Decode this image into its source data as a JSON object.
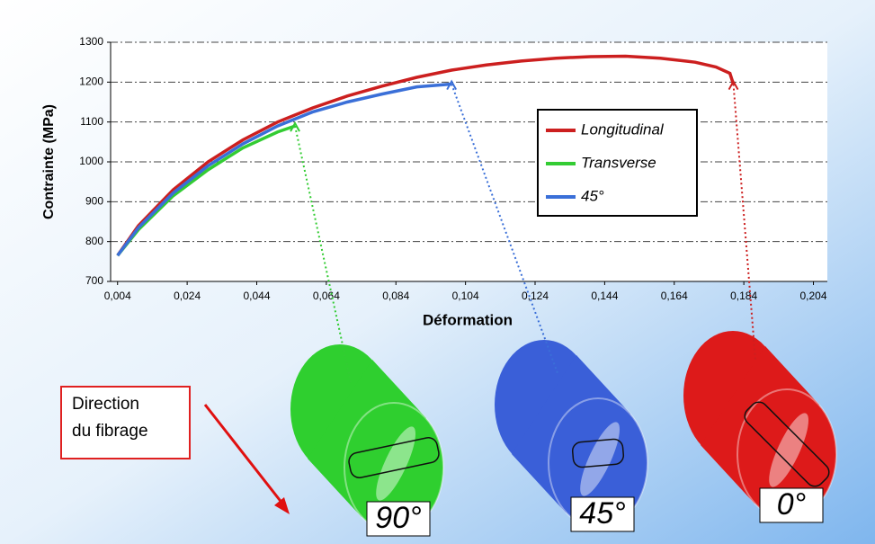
{
  "chart_data": {
    "type": "line",
    "y_label": "Contrainte (MPa)",
    "x_label": "Déformation",
    "xlim": [
      0.002,
      0.208
    ],
    "ylim": [
      700,
      1300
    ],
    "xticks": [
      {
        "value": 0.004,
        "label": "0,004"
      },
      {
        "value": 0.024,
        "label": "0,024"
      },
      {
        "value": 0.044,
        "label": "0,044"
      },
      {
        "value": 0.064,
        "label": "0,064"
      },
      {
        "value": 0.084,
        "label": "0,084"
      },
      {
        "value": 0.104,
        "label": "0,104"
      },
      {
        "value": 0.124,
        "label": "0,124"
      },
      {
        "value": 0.144,
        "label": "0,144"
      },
      {
        "value": 0.164,
        "label": "0,164"
      },
      {
        "value": 0.184,
        "label": "0,184"
      },
      {
        "value": 0.204,
        "label": "0,204"
      }
    ],
    "yticks": [
      700,
      800,
      900,
      1000,
      1100,
      1200,
      1300
    ],
    "grid": true,
    "series": [
      {
        "name": "Longitudinal",
        "color": "#cc1f1f",
        "x": [
          0.004,
          0.01,
          0.02,
          0.03,
          0.04,
          0.05,
          0.06,
          0.07,
          0.08,
          0.09,
          0.1,
          0.11,
          0.12,
          0.13,
          0.14,
          0.15,
          0.16,
          0.17,
          0.176,
          0.18,
          0.181
        ],
        "values": [
          765,
          840,
          930,
          1000,
          1055,
          1100,
          1135,
          1165,
          1190,
          1212,
          1230,
          1243,
          1253,
          1260,
          1264,
          1265,
          1260,
          1250,
          1238,
          1222,
          1195
        ]
      },
      {
        "name": "Transverse",
        "color": "#33cc33",
        "x": [
          0.004,
          0.01,
          0.02,
          0.03,
          0.04,
          0.05,
          0.055
        ],
        "values": [
          765,
          830,
          915,
          980,
          1035,
          1075,
          1090
        ]
      },
      {
        "name": "45°",
        "color": "#3a6fd8",
        "x": [
          0.004,
          0.01,
          0.02,
          0.03,
          0.04,
          0.05,
          0.06,
          0.07,
          0.08,
          0.09,
          0.1
        ],
        "values": [
          765,
          835,
          922,
          990,
          1045,
          1090,
          1125,
          1150,
          1170,
          1188,
          1195
        ]
      }
    ]
  },
  "illustration": {
    "direction_label": [
      "Direction",
      "du fibrage"
    ],
    "cylinders": [
      {
        "label": "90°",
        "color": "#2fcf2f"
      },
      {
        "label": "45°",
        "color": "#3a5fd8"
      },
      {
        "label": "0°",
        "color": "#dd1a1a"
      }
    ]
  }
}
